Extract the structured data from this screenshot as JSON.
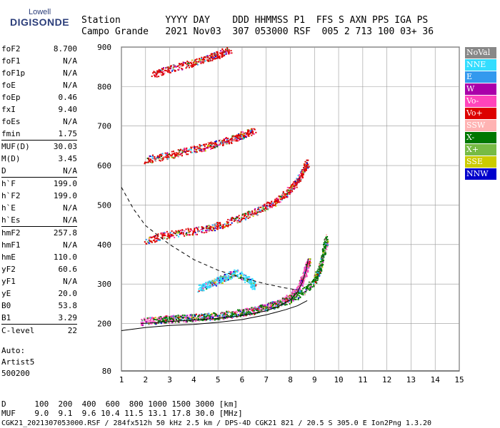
{
  "logo": {
    "line1": "Lowell",
    "line2": "DIGISONDE"
  },
  "header": {
    "row1": "Station        YYYY DAY    DDD HHMMSS P1  FFS S AXN PPS IGA PS",
    "row2": "Campo Grande   2021 Nov03  307 053000 RSF  005 2 713 100 03+ 36"
  },
  "params": [
    {
      "group": [
        {
          "name": "foF2",
          "value": "8.700"
        },
        {
          "name": "foF1",
          "value": "N/A"
        },
        {
          "name": "foF1p",
          "value": "N/A"
        },
        {
          "name": "foE",
          "value": "N/A"
        },
        {
          "name": "foEp",
          "value": "0.46"
        },
        {
          "name": "fxI",
          "value": "9.40"
        },
        {
          "name": "foEs",
          "value": "N/A"
        },
        {
          "name": "fmin",
          "value": "1.75"
        }
      ]
    },
    {
      "group": [
        {
          "name": "MUF(D)",
          "value": "30.03"
        },
        {
          "name": "M(D)",
          "value": "3.45"
        },
        {
          "name": "D",
          "value": "N/A"
        }
      ]
    },
    {
      "group": [
        {
          "name": "h`F",
          "value": "199.0"
        },
        {
          "name": "h`F2",
          "value": "199.0"
        },
        {
          "name": "h`E",
          "value": "N/A"
        },
        {
          "name": "h`Es",
          "value": "N/A"
        }
      ]
    },
    {
      "group": [
        {
          "name": "hmF2",
          "value": "257.8"
        },
        {
          "name": "hmF1",
          "value": "N/A"
        },
        {
          "name": "hmE",
          "value": "110.0"
        },
        {
          "name": "yF2",
          "value": "60.6"
        },
        {
          "name": "yF1",
          "value": "N/A"
        },
        {
          "name": "yE",
          "value": "20.0"
        },
        {
          "name": "B0",
          "value": "53.8"
        },
        {
          "name": "B1",
          "value": "3.29"
        }
      ]
    },
    {
      "group": [
        {
          "name": "C-level",
          "value": "22"
        }
      ]
    }
  ],
  "auto": {
    "line1": "Auto:",
    "line2": "Artist5",
    "line3": "500200"
  },
  "legend": [
    {
      "label": "NoVal",
      "color": "#888888"
    },
    {
      "label": "NNE",
      "color": "#33ddff"
    },
    {
      "label": "E",
      "color": "#3399ee"
    },
    {
      "label": "W",
      "color": "#aa00aa"
    },
    {
      "label": "Vo-",
      "color": "#ff44bb"
    },
    {
      "label": "Vo+",
      "color": "#dd0000"
    },
    {
      "label": "SSW",
      "color": "#ffb3b3"
    },
    {
      "label": "X-",
      "color": "#007700"
    },
    {
      "label": "X+",
      "color": "#77bb44"
    },
    {
      "label": "SSE",
      "color": "#cccc00"
    },
    {
      "label": "NNW",
      "color": "#0000cc"
    }
  ],
  "footer": {
    "row1": "D      100  200  400  600  800 1000 1500 3000 [km]",
    "row2": "MUF    9.0  9.1  9.6 10.4 11.5 13.1 17.8 30.0 [MHz]",
    "row3": "CGK21_2021307053000.RSF / 284fx512h 50 kHz 2.5 km / DPS-4D CGK21 821 / 20.5 S 305.0 E Ion2Png 1.3.20"
  },
  "chart_data": {
    "type": "scatter",
    "xlim": [
      1,
      15
    ],
    "ylim": [
      80,
      900
    ],
    "xticks": [
      "1",
      "2",
      "3",
      "4",
      "5",
      "6",
      "7",
      "8",
      "9",
      "10",
      "11",
      "12",
      "13",
      "14",
      "15"
    ],
    "yticks": [
      "80",
      "200",
      "300",
      "400",
      "500",
      "600",
      "700",
      "800",
      "900"
    ],
    "grid": true,
    "traces": [
      {
        "name": "F2 O-trace",
        "color": "#ff44bb",
        "points": [
          [
            1.8,
            205
          ],
          [
            2.5,
            210
          ],
          [
            3.2,
            213
          ],
          [
            4,
            216
          ],
          [
            5,
            220
          ],
          [
            6,
            228
          ],
          [
            6.5,
            235
          ],
          [
            7,
            243
          ],
          [
            7.5,
            252
          ],
          [
            8,
            268
          ],
          [
            8.3,
            290
          ],
          [
            8.5,
            315
          ],
          [
            8.65,
            340
          ],
          [
            8.75,
            360
          ]
        ]
      },
      {
        "name": "F2 X-trace",
        "color": "#007700",
        "points": [
          [
            2.5,
            210
          ],
          [
            3.5,
            214
          ],
          [
            4.5,
            218
          ],
          [
            5.5,
            224
          ],
          [
            6.5,
            234
          ],
          [
            7.3,
            248
          ],
          [
            8,
            262
          ],
          [
            8.6,
            285
          ],
          [
            9,
            310
          ],
          [
            9.2,
            340
          ],
          [
            9.35,
            380
          ],
          [
            9.5,
            420
          ]
        ]
      },
      {
        "name": "2F",
        "color": "#dd0000",
        "points": [
          [
            2,
            410
          ],
          [
            2.8,
            425
          ],
          [
            3.6,
            432
          ],
          [
            4.5,
            440
          ],
          [
            5.2,
            452
          ],
          [
            6,
            470
          ],
          [
            6.7,
            488
          ],
          [
            7.3,
            508
          ],
          [
            7.8,
            530
          ],
          [
            8.2,
            555
          ],
          [
            8.5,
            585
          ],
          [
            8.7,
            610
          ]
        ]
      },
      {
        "name": "3F",
        "color": "#dd0000",
        "points": [
          [
            2,
            615
          ],
          [
            2.8,
            625
          ],
          [
            3.6,
            637
          ],
          [
            4.4,
            648
          ],
          [
            5,
            658
          ],
          [
            5.6,
            668
          ],
          [
            6,
            678
          ],
          [
            6.5,
            690
          ]
        ]
      },
      {
        "name": "4F",
        "color": "#dd0000",
        "points": [
          [
            2.3,
            830
          ],
          [
            3,
            845
          ],
          [
            3.8,
            858
          ],
          [
            4.5,
            872
          ],
          [
            5,
            882
          ],
          [
            5.5,
            895
          ]
        ]
      },
      {
        "name": "E/Es weak",
        "color": "#33ddff",
        "points": [
          [
            4.2,
            290
          ],
          [
            4.6,
            300
          ],
          [
            5,
            310
          ],
          [
            5.3,
            318
          ],
          [
            5.7,
            330
          ],
          [
            6.3,
            310
          ],
          [
            6.5,
            295
          ]
        ]
      }
    ],
    "curves": [
      {
        "name": "virtual height fit",
        "style": "solid",
        "points": [
          [
            1.8,
            200
          ],
          [
            3,
            205
          ],
          [
            4,
            209
          ],
          [
            5,
            213
          ],
          [
            6,
            220
          ],
          [
            7,
            232
          ],
          [
            7.5,
            243
          ],
          [
            8,
            260
          ],
          [
            8.3,
            280
          ],
          [
            8.5,
            305
          ],
          [
            8.65,
            335
          ],
          [
            8.75,
            365
          ]
        ]
      },
      {
        "name": "true profile",
        "style": "solid",
        "points": [
          [
            1,
            182
          ],
          [
            2,
            190
          ],
          [
            3,
            195
          ],
          [
            4,
            198
          ],
          [
            5,
            203
          ],
          [
            6,
            210
          ],
          [
            7,
            222
          ],
          [
            7.8,
            235
          ],
          [
            8.3,
            245
          ],
          [
            8.7,
            258
          ]
        ]
      },
      {
        "name": "MUF curve",
        "style": "dashed",
        "points": [
          [
            1,
            545
          ],
          [
            1.5,
            490
          ],
          [
            2,
            448
          ],
          [
            3,
            400
          ],
          [
            4,
            362
          ],
          [
            5,
            335
          ],
          [
            6,
            316
          ],
          [
            7,
            300
          ],
          [
            7.8,
            290
          ],
          [
            8.3,
            285
          ]
        ]
      }
    ]
  }
}
